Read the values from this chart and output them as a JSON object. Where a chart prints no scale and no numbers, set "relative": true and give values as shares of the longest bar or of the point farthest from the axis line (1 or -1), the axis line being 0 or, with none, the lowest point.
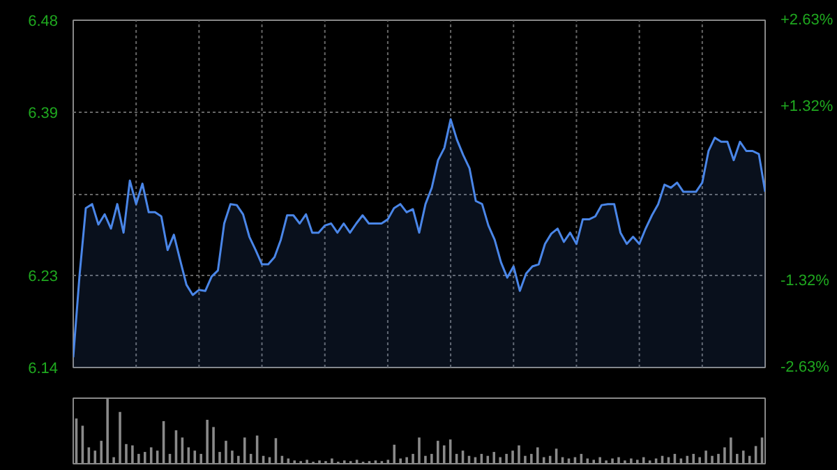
{
  "chart_data": [
    {
      "type": "area",
      "categories": [
        null,
        null,
        null,
        null,
        null,
        null,
        null,
        null,
        null,
        null,
        null,
        null,
        null,
        null,
        null,
        null,
        null,
        null,
        null,
        null,
        null,
        null,
        null,
        null,
        null,
        null,
        null,
        null,
        null,
        null,
        null,
        null,
        null,
        null,
        null,
        null,
        null,
        null,
        null,
        null,
        null,
        null,
        null,
        null,
        null,
        null,
        null,
        null,
        null,
        null,
        null,
        null,
        null,
        null,
        null,
        null,
        null,
        null,
        null,
        null,
        null,
        null,
        null,
        null,
        null,
        null,
        null,
        null,
        null,
        null,
        null,
        null,
        null,
        null,
        null,
        null,
        null,
        null,
        null,
        null,
        null,
        null,
        null,
        null,
        null,
        null,
        null,
        null,
        null,
        null,
        null,
        null,
        null,
        null,
        null,
        null,
        null,
        null,
        null,
        null,
        null,
        null,
        null,
        null,
        null,
        null,
        null,
        null,
        null,
        null,
        null
      ],
      "series": [
        {
          "color": "#4a86e8",
          "values": [
            6.15,
            6.23,
            6.296,
            6.3,
            6.28,
            6.29,
            6.276,
            6.3,
            6.272,
            6.323,
            6.3,
            6.32,
            6.292,
            6.292,
            6.288,
            6.255,
            6.27,
            6.245,
            6.221,
            6.211,
            6.216,
            6.215,
            6.229,
            6.235,
            6.281,
            6.3,
            6.299,
            6.29,
            6.268,
            6.255,
            6.241,
            6.241,
            6.248,
            6.265,
            6.289,
            6.289,
            6.281,
            6.29,
            6.272,
            6.272,
            6.279,
            6.281,
            6.272,
            6.281,
            6.272,
            6.281,
            6.289,
            6.281,
            6.281,
            6.281,
            6.285,
            6.296,
            6.3,
            6.292,
            6.295,
            6.272,
            6.3,
            6.316,
            6.343,
            6.355,
            6.383,
            6.363,
            6.348,
            6.335,
            6.303,
            6.3,
            6.279,
            6.265,
            6.243,
            6.228,
            6.239,
            6.215,
            6.232,
            6.239,
            6.241,
            6.261,
            6.271,
            6.276,
            6.263,
            6.272,
            6.261,
            6.285,
            6.285,
            6.288,
            6.299,
            6.3,
            6.3,
            6.272,
            6.261,
            6.268,
            6.261,
            6.276,
            6.289,
            6.3,
            6.319,
            6.316,
            6.321,
            6.312,
            6.312,
            6.312,
            6.321,
            6.352,
            6.365,
            6.361,
            6.361,
            6.343,
            6.361,
            6.352,
            6.352,
            6.349,
            6.312
          ]
        }
      ],
      "ylim": [
        6.14,
        6.48
      ],
      "yticks": [
        6.48,
        6.39,
        {
          "value": 6.31,
          "label": null
        },
        6.23,
        6.14
      ],
      "y2lim": [
        -2.63,
        2.63
      ],
      "y2ticks": [
        {
          "value": 2.63,
          "label": "+2.63%"
        },
        {
          "value": 1.32,
          "label": "+1.32%"
        },
        {
          "value": -1.32,
          "label": "-1.32%"
        },
        {
          "value": -2.63,
          "label": "-2.63%"
        }
      ],
      "grid": true
    },
    {
      "type": "bar",
      "relative": true,
      "categories": [
        null,
        null,
        null,
        null,
        null,
        null,
        null,
        null,
        null,
        null,
        null,
        null,
        null,
        null,
        null,
        null,
        null,
        null,
        null,
        null,
        null,
        null,
        null,
        null,
        null,
        null,
        null,
        null,
        null,
        null,
        null,
        null,
        null,
        null,
        null,
        null,
        null,
        null,
        null,
        null,
        null,
        null,
        null,
        null,
        null,
        null,
        null,
        null,
        null,
        null,
        null,
        null,
        null,
        null,
        null,
        null,
        null,
        null,
        null,
        null,
        null,
        null,
        null,
        null,
        null,
        null,
        null,
        null,
        null,
        null,
        null,
        null,
        null,
        null,
        null,
        null,
        null,
        null,
        null,
        null,
        null,
        null,
        null,
        null,
        null,
        null,
        null,
        null,
        null,
        null,
        null,
        null,
        null,
        null,
        null,
        null,
        null,
        null,
        null,
        null,
        null,
        null,
        null,
        null,
        null,
        null,
        null,
        null,
        null,
        null,
        null
      ],
      "series": [
        {
          "color": "#8a8a8a",
          "values": [
            0.69,
            0.58,
            0.25,
            0.2,
            0.35,
            1.0,
            0.1,
            0.79,
            0.3,
            0.28,
            0.15,
            0.18,
            0.25,
            0.2,
            0.65,
            0.15,
            0.51,
            0.4,
            0.25,
            0.2,
            0.15,
            0.67,
            0.56,
            0.18,
            0.35,
            0.2,
            0.12,
            0.4,
            0.15,
            0.43,
            0.12,
            0.1,
            0.39,
            0.12,
            0.08,
            0.05,
            0.04,
            0.06,
            0.03,
            0.05,
            0.04,
            0.08,
            0.03,
            0.05,
            0.04,
            0.06,
            0.03,
            0.04,
            0.05,
            0.04,
            0.06,
            0.29,
            0.08,
            0.1,
            0.15,
            0.4,
            0.12,
            0.15,
            0.35,
            0.28,
            0.37,
            0.15,
            0.2,
            0.12,
            0.1,
            0.15,
            0.12,
            0.18,
            0.1,
            0.15,
            0.2,
            0.28,
            0.12,
            0.15,
            0.25,
            0.1,
            0.12,
            0.23,
            0.1,
            0.08,
            0.1,
            0.15,
            0.08,
            0.06,
            0.1,
            0.05,
            0.08,
            0.1,
            0.05,
            0.08,
            0.06,
            0.1,
            0.05,
            0.08,
            0.12,
            0.1,
            0.15,
            0.08,
            0.12,
            0.15,
            0.1,
            0.2,
            0.12,
            0.15,
            0.25,
            0.4,
            0.15,
            0.2,
            0.12,
            0.27,
            0.4
          ]
        }
      ]
    }
  ]
}
